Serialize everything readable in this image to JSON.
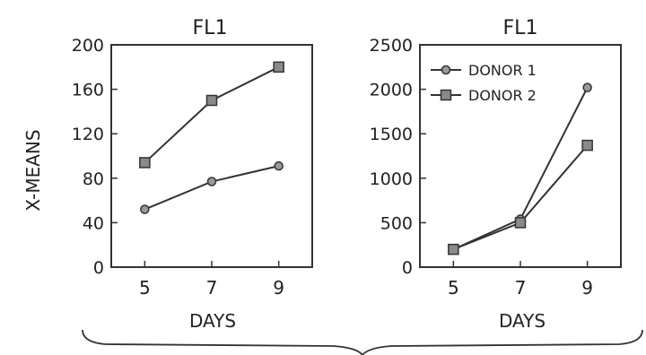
{
  "figure": {
    "ylabel": "X-MEANS"
  },
  "chart_data": [
    {
      "type": "line",
      "title": "FL1",
      "xlabel": "DAYS",
      "ylabel": "X-MEANS",
      "x": [
        5,
        7,
        9
      ],
      "xticks": [
        "5",
        "7",
        "9"
      ],
      "xlim": [
        4,
        10
      ],
      "ylim": [
        0,
        200
      ],
      "yticks": [
        "0",
        "40",
        "80",
        "120",
        "160",
        "200"
      ],
      "yticks_values": [
        0,
        40,
        80,
        120,
        160,
        200
      ],
      "grid": false,
      "legend": null,
      "series": [
        {
          "name": "DONOR 1",
          "marker": "circle",
          "values": [
            52,
            77,
            91
          ]
        },
        {
          "name": "DONOR 2",
          "marker": "square",
          "values": [
            94,
            150,
            180
          ]
        }
      ]
    },
    {
      "type": "line",
      "title": "FL1",
      "xlabel": "DAYS",
      "ylabel": "",
      "x": [
        5,
        7,
        9
      ],
      "xticks": [
        "5",
        "7",
        "9"
      ],
      "xlim": [
        4,
        10
      ],
      "ylim": [
        0,
        2500
      ],
      "yticks": [
        "0",
        "500",
        "1000",
        "1500",
        "2000",
        "2500"
      ],
      "yticks_values": [
        0,
        500,
        1000,
        1500,
        2000,
        2500
      ],
      "grid": false,
      "legend": "top-left",
      "series": [
        {
          "name": "DONOR 1",
          "marker": "circle",
          "values": [
            200,
            540,
            2020
          ]
        },
        {
          "name": "DONOR 2",
          "marker": "square",
          "values": [
            200,
            500,
            1370
          ]
        }
      ]
    }
  ]
}
